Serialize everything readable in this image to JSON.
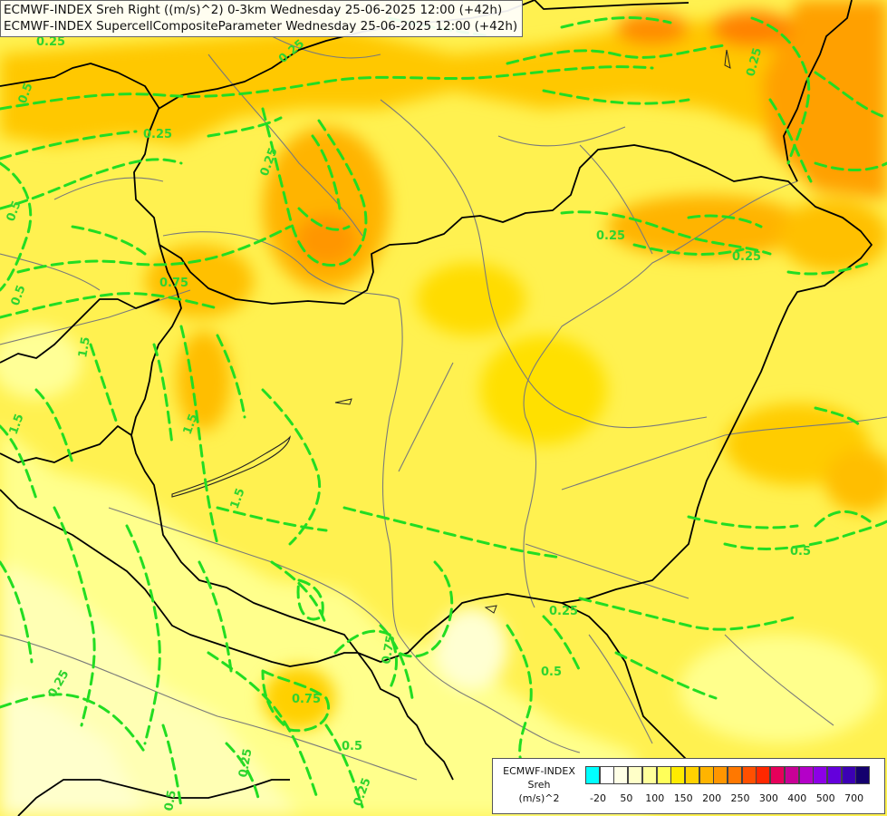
{
  "titles": [
    "ECMWF-INDEX Sreh Right ((m/s)^2) 0-3km Wednesday 25-06-2025 12:00 (+42h)",
    "ECMWF-INDEX SupercellCompositeParameter Wednesday 25-06-2025 12:00 (+42h)"
  ],
  "legend": {
    "title_lines": [
      "ECMWF-INDEX",
      "Sreh",
      "(m/s)^2"
    ],
    "colors": [
      "#00ffff",
      "#ffffff",
      "#ffffe6",
      "#ffffc8",
      "#ffff9b",
      "#ffff5a",
      "#ffeb00",
      "#ffd200",
      "#ffb400",
      "#ff9600",
      "#ff7800",
      "#ff5000",
      "#ff2800",
      "#e6005a",
      "#c80096",
      "#b400c8",
      "#8c00e6",
      "#6400dc",
      "#3c00b4",
      "#14006e"
    ],
    "ticks": [
      "-20",
      "50",
      "100",
      "150",
      "200",
      "250",
      "300",
      "400",
      "500",
      "700"
    ]
  },
  "contour_labels": [
    "0.25",
    "0.5",
    "0.75",
    "1.5"
  ],
  "colors": {
    "contour": "#22dd22",
    "border": "#000000",
    "river": "#7a7a7a",
    "base_fill": "#fff150"
  }
}
